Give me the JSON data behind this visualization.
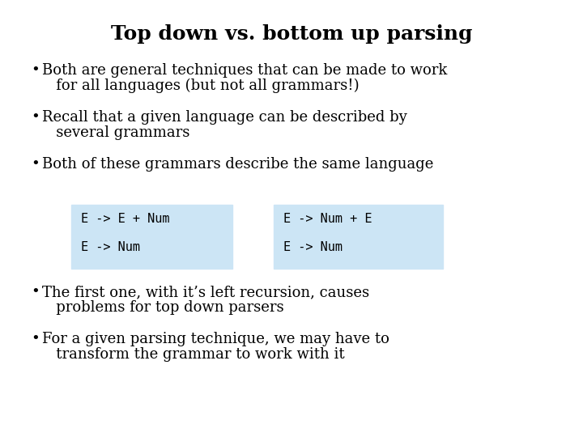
{
  "title": "Top down vs. bottom up parsing",
  "background_color": "#ffffff",
  "title_fontsize": 18,
  "title_font": "serif",
  "title_bold": true,
  "body_fontsize": 13,
  "body_font": "serif",
  "mono_font": "monospace",
  "mono_fontsize": 11,
  "text_color": "#000000",
  "box_bg_color": "#cce5f5",
  "box1_lines": [
    "E -> E + Num",
    "E -> Num"
  ],
  "box2_lines": [
    "E -> Num + E",
    "E -> Num"
  ],
  "bullet1_line1": "Both are general techniques that can be made to work",
  "bullet1_line2": "   for all languages (but not all grammars!)",
  "bullet2_line1": "Recall that a given language can be described by",
  "bullet2_line2": "   several grammars",
  "bullet3_line1": "Both of these grammars describe the same language",
  "bullet4_line1": "The first one, with it’s left recursion, causes",
  "bullet4_line2": "   problems for top down parsers",
  "bullet5_line1": "For a given parsing technique, we may have to",
  "bullet5_line2": "   transform the grammar to work with it"
}
